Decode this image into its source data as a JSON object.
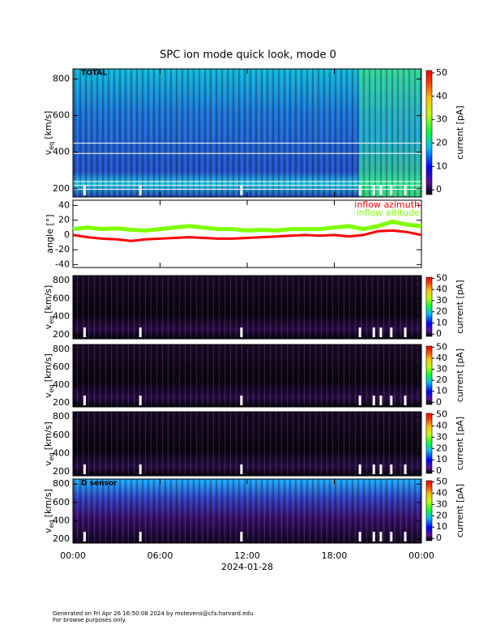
{
  "title": "SPC ion mode quick look, mode 0",
  "footer": [
    "Generated on Fri Apr 26 16:50:08 2024 by mstevens@cfa.harvard.edu",
    "For browse purposes only."
  ],
  "chart_data": [
    {
      "type": "spectrogram",
      "label": "TOTAL",
      "ylabel": {
        "text": "v",
        "subscript": "eq",
        "units": "[km/s]"
      },
      "ylim": [
        155,
        855
      ],
      "yticks": [
        200,
        400,
        600,
        800
      ],
      "colorbar": {
        "label": "current [pA]",
        "clim": [
          -2,
          51
        ],
        "ticks": [
          0,
          10,
          20,
          30,
          40,
          50
        ]
      }
    },
    {
      "type": "line",
      "ylabel": "angle [°]",
      "ylim": [
        -44,
        47
      ],
      "yticks": [
        -40,
        -20,
        0,
        20,
        40
      ],
      "legend": "upper right",
      "x": [
        0,
        1,
        2,
        3,
        4,
        5,
        6,
        7,
        8,
        9,
        10,
        11,
        12,
        13,
        14,
        15,
        16,
        17,
        18,
        19,
        20,
        21,
        22,
        23,
        24
      ],
      "series": [
        {
          "name": "inflow azimuth",
          "color": "#ff0000",
          "values": [
            0,
            -3,
            -5,
            -6,
            -8,
            -6,
            -5,
            -4,
            -3,
            -4,
            -5,
            -5,
            -4,
            -3,
            -2,
            -1,
            0,
            -1,
            0,
            -2,
            0,
            5,
            6,
            4,
            0
          ]
        },
        {
          "name": "inflow altitude",
          "color": "#7fff00",
          "values": [
            8,
            10,
            8,
            9,
            7,
            6,
            8,
            10,
            12,
            10,
            8,
            8,
            6,
            7,
            6,
            8,
            8,
            8,
            10,
            12,
            8,
            12,
            18,
            14,
            12
          ]
        }
      ]
    },
    {
      "type": "spectrogram",
      "ylabel": {
        "text": "v",
        "subscript": "eq",
        "units": "[km/s]"
      },
      "ylim": [
        155,
        855
      ],
      "yticks": [
        200,
        400,
        600,
        800
      ],
      "colorbar": {
        "label": "current [pA]",
        "clim": [
          -2,
          51
        ],
        "ticks": [
          0,
          10,
          20,
          30,
          40,
          50
        ]
      }
    },
    {
      "type": "spectrogram",
      "ylabel": {
        "text": "v",
        "subscript": "eq",
        "units": "[km/s]"
      },
      "ylim": [
        155,
        855
      ],
      "yticks": [
        200,
        400,
        600,
        800
      ],
      "colorbar": {
        "label": "current [pA]",
        "clim": [
          -2,
          51
        ],
        "ticks": [
          0,
          10,
          20,
          30,
          40,
          50
        ]
      }
    },
    {
      "type": "spectrogram",
      "ylabel": {
        "text": "v",
        "subscript": "eq",
        "units": "[km/s]"
      },
      "ylim": [
        155,
        855
      ],
      "yticks": [
        200,
        400,
        600,
        800
      ],
      "colorbar": {
        "label": "current [pA]",
        "clim": [
          -2,
          51
        ],
        "ticks": [
          0,
          10,
          20,
          30,
          40,
          50
        ]
      }
    },
    {
      "type": "spectrogram",
      "label": "D sensor",
      "ylabel": {
        "text": "v",
        "subscript": "eq",
        "units": "[km/s]"
      },
      "ylim": [
        155,
        855
      ],
      "yticks": [
        200,
        400,
        600,
        800
      ],
      "colorbar": {
        "label": "current [pA]",
        "clim": [
          -2,
          51
        ],
        "ticks": [
          0,
          10,
          20,
          30,
          40,
          50
        ]
      },
      "xlim": [
        0,
        24
      ],
      "xlabel": "2024-01-28",
      "xticks": [
        {
          "value": 0,
          "label": "00:00"
        },
        {
          "value": 6,
          "label": "06:00"
        },
        {
          "value": 12,
          "label": "12:00"
        },
        {
          "value": 18,
          "label": "18:00"
        },
        {
          "value": 24,
          "label": "00:00"
        }
      ]
    }
  ]
}
